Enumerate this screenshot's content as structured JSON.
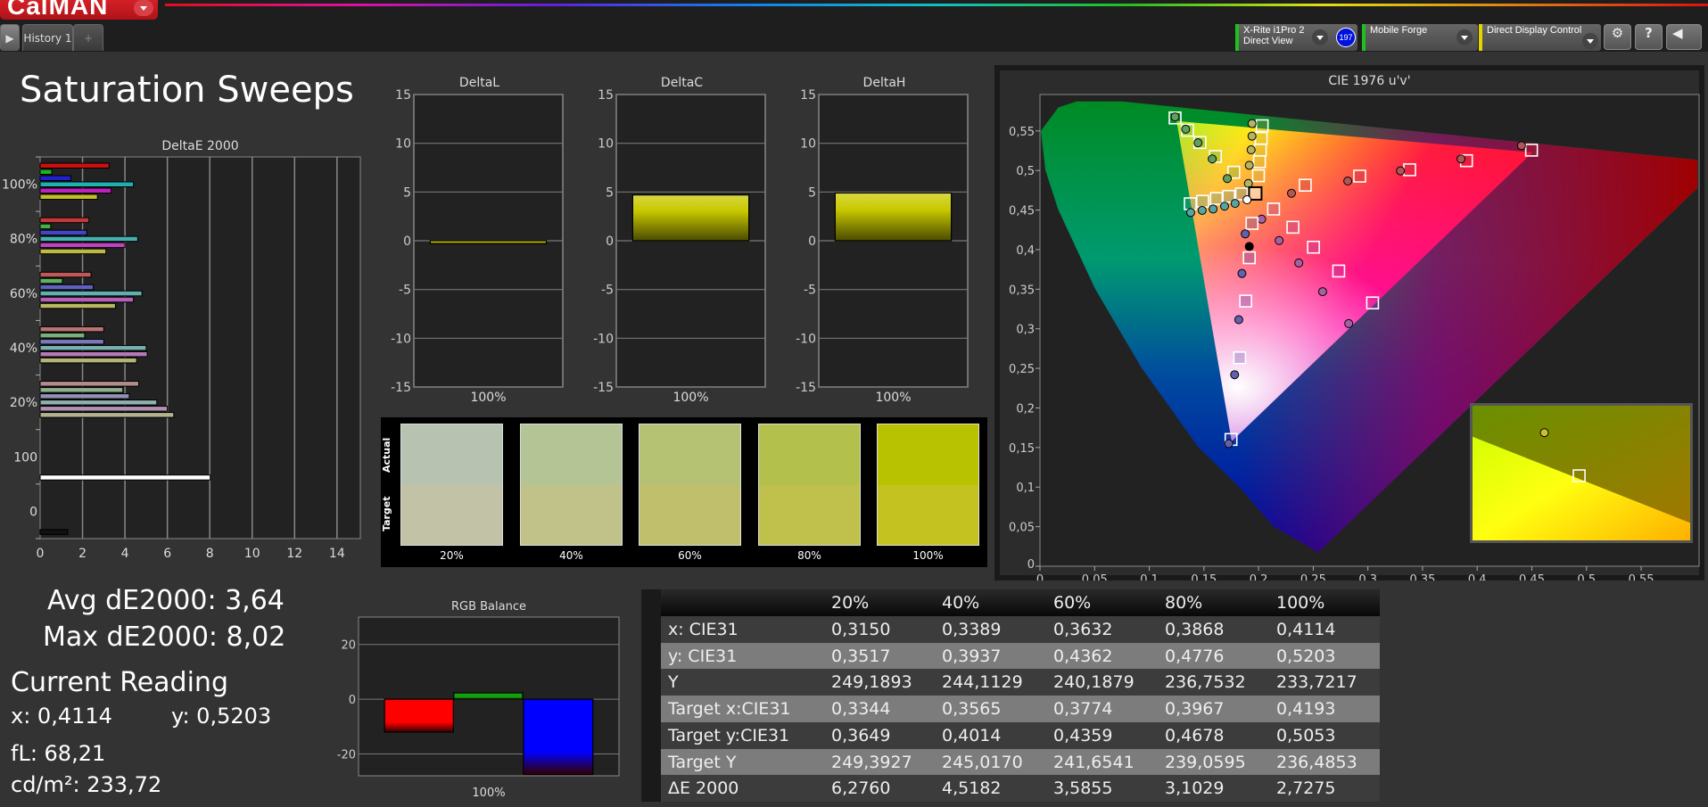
{
  "app": {
    "logo": "CalMAN",
    "tab": "History 1",
    "add_tab": "+"
  },
  "devices": [
    {
      "line1": "X-Rite i1Pro 2",
      "line2": "Direct View",
      "badge": "197",
      "color": "#1fbf1f"
    },
    {
      "line1": "Mobile Forge",
      "line2": "",
      "color": "#1fbf1f"
    },
    {
      "line1": "Direct Display Control",
      "line2": "",
      "color": "#e6d400"
    }
  ],
  "toolbar": {
    "settings": "⚙",
    "help": "?",
    "back": "◀"
  },
  "page_title": "Saturation Sweeps",
  "stats": {
    "avg": "Avg dE2000: 3,64",
    "max": "Max dE2000: 8,02",
    "current_title": "Current Reading",
    "x": "x: 0,4114",
    "y": "y: 0,5203",
    "fl": "fL: 68,21",
    "cdm2": "cd/m²: 233,72"
  },
  "swatches": {
    "actual_label": "Actual",
    "target_label": "Target",
    "items": [
      {
        "label": "20%",
        "actual": "#b7c2b0",
        "target": "#c1c2a6"
      },
      {
        "label": "40%",
        "actual": "#b5c495",
        "target": "#c1c28a"
      },
      {
        "label": "60%",
        "actual": "#b5c274",
        "target": "#c0c06c"
      },
      {
        "label": "80%",
        "actual": "#b4c04c",
        "target": "#c0c04c"
      },
      {
        "label": "100%",
        "actual": "#b8c200",
        "target": "#c4c220"
      }
    ]
  },
  "table": {
    "headers": [
      "",
      "20%",
      "40%",
      "60%",
      "80%",
      "100%"
    ],
    "rows": [
      [
        "x: CIE31",
        "0,3150",
        "0,3389",
        "0,3632",
        "0,3868",
        "0,4114"
      ],
      [
        "y: CIE31",
        "0,3517",
        "0,3937",
        "0,4362",
        "0,4776",
        "0,5203"
      ],
      [
        "Y",
        "249,1893",
        "244,1129",
        "240,1879",
        "236,7532",
        "233,7217"
      ],
      [
        "Target x:CIE31",
        "0,3344",
        "0,3565",
        "0,3774",
        "0,3967",
        "0,4193"
      ],
      [
        "Target y:CIE31",
        "0,3649",
        "0,4014",
        "0,4359",
        "0,4678",
        "0,5053"
      ],
      [
        "Target Y",
        "249,3927",
        "245,0170",
        "241,6541",
        "239,0595",
        "236,4853"
      ],
      [
        "ΔE 2000",
        "6,2760",
        "4,5182",
        "3,5855",
        "3,1029",
        "2,7275"
      ]
    ]
  },
  "chart_data": [
    {
      "id": "deltae",
      "type": "bar",
      "orientation": "horizontal",
      "title": "DeltaE 2000",
      "xlim": [
        0,
        15.1
      ],
      "xticks": [
        "0",
        "2",
        "4",
        "6",
        "8",
        "10",
        "12",
        "14"
      ],
      "series_colors": [
        "#cc1010",
        "#20b020",
        "#2020cc",
        "#20b0b0",
        "#c020c0",
        "#c0c020"
      ],
      "groups": [
        {
          "label": "100%",
          "sat": 1.0,
          "values": [
            3.25,
            0.55,
            1.45,
            4.4,
            3.35,
            2.7
          ]
        },
        {
          "label": "80%",
          "sat": 0.75,
          "values": [
            2.3,
            0.5,
            2.2,
            4.6,
            4.0,
            3.1
          ]
        },
        {
          "label": "60%",
          "sat": 0.55,
          "values": [
            2.4,
            1.05,
            2.5,
            4.8,
            4.4,
            3.55
          ]
        },
        {
          "label": "40%",
          "sat": 0.38,
          "values": [
            3.0,
            2.1,
            3.0,
            5.0,
            5.05,
            4.55
          ]
        },
        {
          "label": "20%",
          "sat": 0.22,
          "values": [
            4.65,
            3.9,
            4.2,
            5.5,
            6.0,
            6.3
          ]
        },
        {
          "label": "100",
          "single": "#ffffff",
          "values": [
            8.02
          ]
        },
        {
          "label": "0",
          "single": "#111111",
          "values": [
            1.3
          ]
        }
      ]
    },
    {
      "id": "deltal",
      "type": "bar",
      "title": "DeltaL",
      "ylim": [
        -15,
        15
      ],
      "yticks": [
        "15",
        "10",
        "5",
        "0",
        "-5",
        "-10",
        "-15"
      ],
      "categories": [
        "100%"
      ],
      "values": [
        -0.3
      ],
      "color": "#c8c800"
    },
    {
      "id": "deltac",
      "type": "bar",
      "title": "DeltaC",
      "ylim": [
        -15,
        15
      ],
      "yticks": [
        "15",
        "10",
        "5",
        "0",
        "-5",
        "-10",
        "-15"
      ],
      "categories": [
        "100%"
      ],
      "values": [
        4.7
      ],
      "color": "#c8c800"
    },
    {
      "id": "deltah",
      "type": "bar",
      "title": "DeltaH",
      "ylim": [
        -15,
        15
      ],
      "yticks": [
        "15",
        "10",
        "5",
        "0",
        "-5",
        "-10",
        "-15"
      ],
      "categories": [
        "100%"
      ],
      "values": [
        4.9
      ],
      "color": "#c8c800"
    },
    {
      "id": "rgb",
      "type": "bar",
      "title": "RGB Balance",
      "ylim": [
        -28,
        30
      ],
      "yticks": [
        "20",
        "0",
        "-20"
      ],
      "categories": [
        "100%"
      ],
      "series": [
        {
          "name": "R",
          "value": -12,
          "color": "#ff0000"
        },
        {
          "name": "G",
          "value": 2.3,
          "color": "#10a010"
        },
        {
          "name": "B",
          "value": -27.5,
          "color": "#0000ff"
        }
      ]
    },
    {
      "id": "cie",
      "type": "scatter",
      "title": "CIE 1976 u'v'",
      "xlim": [
        0,
        0.603
      ],
      "ylim": [
        0,
        0.596
      ],
      "xticks": [
        "0",
        "0,05",
        "0,1",
        "0,15",
        "0,2",
        "0,25",
        "0,3",
        "0,35",
        "0,4",
        "0,45",
        "0,5",
        "0,55"
      ],
      "yticks": [
        "0",
        "0,05",
        "0,1",
        "0,15",
        "0,2",
        "0,25",
        "0,3",
        "0,35",
        "0,4",
        "0,45",
        "0,5",
        "0,55"
      ],
      "gamut": {
        "red": [
          0.4507,
          0.5229
        ],
        "green": [
          0.125,
          0.5625
        ],
        "blue": [
          0.1754,
          0.1579
        ]
      },
      "white_target": [
        0.197,
        0.471
      ],
      "white_measured": [
        0.1894,
        0.463
      ],
      "black_measured": [
        0.1915,
        0.404
      ],
      "series": [
        {
          "name": "Green",
          "color": "#3c9a3c",
          "measured": [
            [
              0.1236,
              0.5677
            ],
            [
              0.1333,
              0.5522
            ],
            [
              0.1446,
              0.535
            ],
            [
              0.1576,
              0.5146
            ],
            [
              0.1714,
              0.4898
            ]
          ],
          "target": [
            [
              0.1236,
              0.5664
            ],
            [
              0.135,
              0.5509
            ],
            [
              0.1463,
              0.5354
            ],
            [
              0.1605,
              0.5177
            ],
            [
              0.1773,
              0.4978
            ]
          ]
        },
        {
          "name": "Yellow",
          "color": "#b8b840",
          "measured": [
            [
              0.194,
              0.5593
            ],
            [
              0.194,
              0.5434
            ],
            [
              0.1932,
              0.5261
            ],
            [
              0.1915,
              0.5066
            ],
            [
              0.1907,
              0.4836
            ]
          ],
          "target": [
            [
              0.2033,
              0.5566
            ],
            [
              0.2024,
              0.5407
            ],
            [
              0.2016,
              0.5257
            ],
            [
              0.2008,
              0.5111
            ],
            [
              0.1999,
              0.4934
            ]
          ]
        },
        {
          "name": "Red",
          "color": "#b03030",
          "measured": [
            [
              0.4405,
              0.5314
            ],
            [
              0.3852,
              0.5146
            ],
            [
              0.3298,
              0.4996
            ],
            [
              0.2816,
              0.4867
            ],
            [
              0.2301,
              0.4712
            ]
          ],
          "target": [
            [
              0.4497,
              0.5257
            ],
            [
              0.3902,
              0.5124
            ],
            [
              0.3382,
              0.5009
            ],
            [
              0.2925,
              0.4929
            ],
            [
              0.2427,
              0.4814
            ]
          ]
        },
        {
          "name": "Magenta",
          "color": "#a040a0",
          "measured": [
            [
              0.2825,
              0.3066
            ],
            [
              0.2586,
              0.3469
            ],
            [
              0.2368,
              0.3832
            ],
            [
              0.2188,
              0.4115
            ],
            [
              0.2028,
              0.4385
            ]
          ],
          "target": [
            [
              0.3043,
              0.3327
            ],
            [
              0.2733,
              0.373
            ],
            [
              0.2502,
              0.4031
            ],
            [
              0.2314,
              0.4283
            ],
            [
              0.2137,
              0.4513
            ]
          ]
        },
        {
          "name": "Blue",
          "color": "#4040b0",
          "measured": [
            [
              0.1727,
              0.1549
            ],
            [
              0.1781,
              0.242
            ],
            [
              0.1819,
              0.3115
            ],
            [
              0.1848,
              0.3699
            ],
            [
              0.1878,
              0.4199
            ]
          ],
          "target": [
            [
              0.1748,
              0.1602
            ],
            [
              0.1827,
              0.2633
            ],
            [
              0.1882,
              0.335
            ],
            [
              0.1915,
              0.3898
            ],
            [
              0.194,
              0.4332
            ]
          ]
        },
        {
          "name": "Cyan",
          "color": "#30a0a0",
          "measured": [
            [
              0.1379,
              0.4469
            ],
            [
              0.1484,
              0.4496
            ],
            [
              0.1584,
              0.4513
            ],
            [
              0.1689,
              0.4549
            ],
            [
              0.1785,
              0.4584
            ]
          ],
          "target": [
            [
              0.1375,
              0.458
            ],
            [
              0.1488,
              0.4611
            ],
            [
              0.1614,
              0.4646
            ],
            [
              0.1727,
              0.4673
            ],
            [
              0.1844,
              0.4704
            ]
          ]
        }
      ]
    }
  ]
}
